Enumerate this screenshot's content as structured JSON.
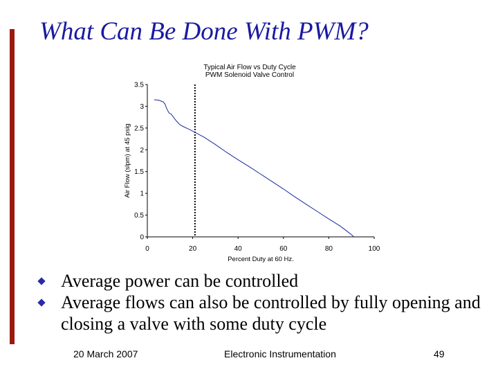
{
  "slide": {
    "title": "What Can Be Done With PWM?",
    "bullets": [
      "Average power can be controlled",
      "Average flows can also be controlled by fully opening and closing a valve with some duty cycle"
    ],
    "footer": {
      "date": "20 March 2007",
      "center": "Electronic Instrumentation",
      "page": "49"
    },
    "colors": {
      "title": "#1a1aa0",
      "accent_bar": "#9a1a10",
      "bullet": "#2a2aa8",
      "series": "#1a2a9a"
    },
    "bullet_icon": "diamond-bullet-icon"
  },
  "chart_data": {
    "type": "line",
    "title": "Typical Air Flow vs Duty Cycle",
    "subtitle": "PWM Solenoid Valve Control",
    "xlabel": "Percent Duty at 60 Hz.",
    "ylabel": "Air Flow (slpm) at 45 psig",
    "xlim": [
      0,
      100
    ],
    "ylim": [
      0,
      3.5
    ],
    "xticks": [
      "0",
      "20",
      "40",
      "60",
      "80",
      "100"
    ],
    "yticks": [
      "0",
      "0.5",
      "1",
      "1.5",
      "2",
      "2.5",
      "3",
      "3.5"
    ],
    "grid": false,
    "reference_line_x": 21,
    "series": [
      {
        "points": [
          [
            3,
            3.15
          ],
          [
            5,
            3.14
          ],
          [
            7,
            3.1
          ],
          [
            7.8,
            3.05
          ],
          [
            8.5,
            2.95
          ],
          [
            9.5,
            2.85
          ],
          [
            10.5,
            2.82
          ],
          [
            11.5,
            2.75
          ],
          [
            13,
            2.65
          ],
          [
            14.5,
            2.57
          ],
          [
            16,
            2.53
          ],
          [
            18,
            2.48
          ],
          [
            20,
            2.43
          ],
          [
            21,
            2.4
          ],
          [
            25,
            2.29
          ],
          [
            30,
            2.12
          ],
          [
            35,
            1.94
          ],
          [
            40,
            1.77
          ],
          [
            45,
            1.61
          ],
          [
            50,
            1.44
          ],
          [
            55,
            1.27
          ],
          [
            60,
            1.1
          ],
          [
            65,
            0.92
          ],
          [
            70,
            0.75
          ],
          [
            75,
            0.58
          ],
          [
            80,
            0.41
          ],
          [
            85,
            0.25
          ],
          [
            88,
            0.13
          ],
          [
            90,
            0.05
          ],
          [
            91,
            0
          ]
        ]
      }
    ]
  }
}
